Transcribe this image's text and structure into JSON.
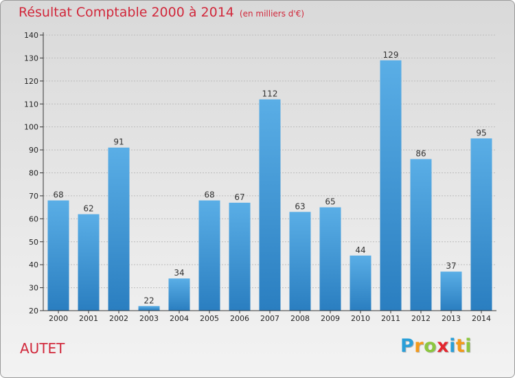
{
  "header": {
    "title": "Résultat Comptable 2000 à 2014",
    "unit": "(en milliers d'€)"
  },
  "commune": "AUTET",
  "logo": {
    "letters": [
      "P",
      "r",
      "o",
      "x",
      "i",
      "t",
      "i"
    ],
    "colors": [
      "#2a9fd8",
      "#f39a1b",
      "#8cc63f",
      "#e3262e",
      "#2a9fd8",
      "#f39a1b",
      "#8cc63f"
    ]
  },
  "colors": {
    "title": "#d1273a",
    "bar_light": "#5aaee6",
    "bar_dark": "#2a7ec0",
    "axis": "#333333",
    "grid": "#bcbcbc"
  },
  "chart_data": {
    "type": "bar",
    "categories": [
      "2000",
      "2001",
      "2002",
      "2003",
      "2004",
      "2005",
      "2006",
      "2007",
      "2008",
      "2009",
      "2010",
      "2011",
      "2012",
      "2013",
      "2014"
    ],
    "values": [
      68,
      62,
      91,
      22,
      34,
      68,
      67,
      112,
      63,
      65,
      44,
      129,
      86,
      37,
      95
    ],
    "ylim": [
      20,
      140
    ],
    "yticks": [
      20,
      30,
      40,
      50,
      60,
      70,
      80,
      90,
      100,
      110,
      120,
      130,
      140
    ],
    "grid": true,
    "data_labels": true
  }
}
